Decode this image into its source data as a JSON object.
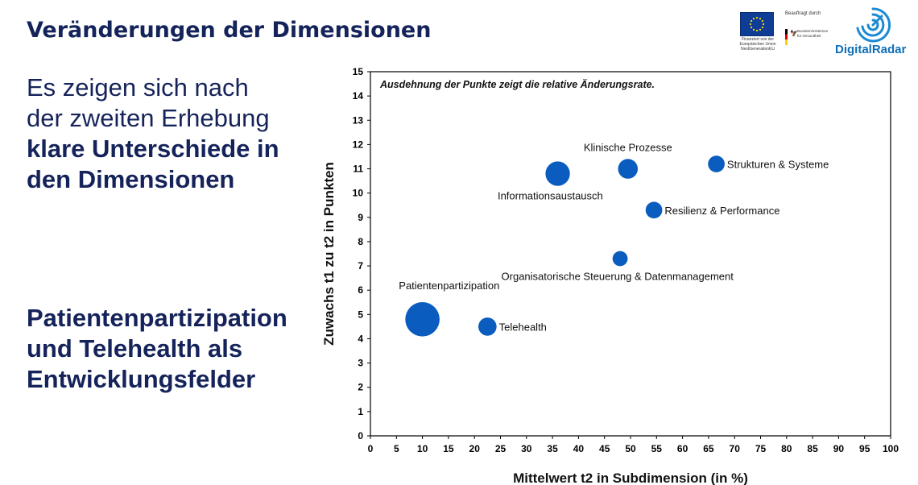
{
  "slide": {
    "title": "Veränderungen der Dimensionen",
    "text1": [
      "Es zeigen sich nach",
      "der zweiten Erhebung"
    ],
    "text1_bold": [
      "klare Unterschiede in",
      "den Dimensionen"
    ],
    "text2": [
      "Patientenpartizipation",
      "und Telehealth als",
      "Entwicklungsfelder"
    ]
  },
  "logos": {
    "eu_text": "Finanziert von der Europäischen Union NextGenerationEU",
    "bmg_label": "Beauftragt durch",
    "bmg_text": "Bundesministerium für Gesundheit",
    "digitalradar": "DigitalRadar"
  },
  "colors": {
    "bubble": "#0a5cbf",
    "title": "#14235a",
    "brand": "#0e6fb8"
  },
  "chart_data": {
    "type": "scatter",
    "annotation": "Ausdehnung der Punkte zeigt die relative Änderungsrate.",
    "xlabel": "Mittelwert t2 in Subdimension (in %)",
    "ylabel": "Zuwachs t1 zu t2 in Punkten",
    "xlim": [
      0,
      100
    ],
    "ylim": [
      0,
      15
    ],
    "xticks": [
      0,
      5,
      10,
      15,
      20,
      25,
      30,
      35,
      40,
      45,
      50,
      55,
      60,
      65,
      70,
      75,
      80,
      85,
      90,
      95,
      100
    ],
    "yticks": [
      0,
      1,
      2,
      3,
      4,
      5,
      6,
      7,
      8,
      9,
      10,
      11,
      12,
      13,
      14,
      15
    ],
    "grid": false,
    "points": [
      {
        "label": "Patientenpartizipation",
        "x": 10,
        "y": 4.8,
        "size": 3.3,
        "label_pos": "above-left"
      },
      {
        "label": "Telehealth",
        "x": 22.5,
        "y": 4.5,
        "size": 1.75,
        "label_pos": "right"
      },
      {
        "label": "Organisatorische Steuerung & Datenmanagement",
        "x": 48,
        "y": 7.3,
        "size": 1.45,
        "label_pos": "below-left"
      },
      {
        "label": "Informationsaustausch",
        "x": 36,
        "y": 10.8,
        "size": 2.35,
        "label_pos": "below-left"
      },
      {
        "label": "Klinische Prozesse",
        "x": 49.5,
        "y": 11,
        "size": 1.9,
        "label_pos": "above"
      },
      {
        "label": "Strukturen & Systeme",
        "x": 66.5,
        "y": 11.2,
        "size": 1.6,
        "label_pos": "right"
      },
      {
        "label": "Resilienz & Performance",
        "x": 54.5,
        "y": 9.3,
        "size": 1.6,
        "label_pos": "right"
      }
    ]
  }
}
